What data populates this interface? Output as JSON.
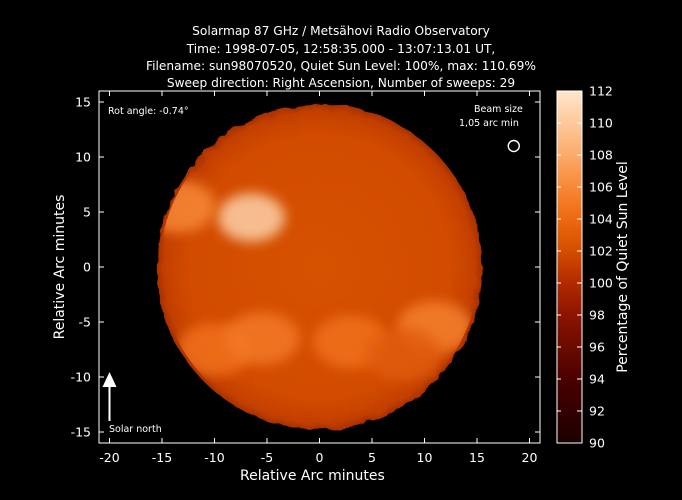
{
  "chart_data": {
    "type": "heatmap",
    "title_lines": [
      "Solarmap 87 GHz / Metsähovi Radio Observatory",
      "Time: 1998-07-05, 12:58:35.000 - 13:07:13.01 UT,",
      "Filename: sun98070520, Quiet Sun Level: 100%, max: 110.69%",
      "Sweep direction: Right Ascension, Number of sweeps: 29"
    ],
    "xlabel": "Relative Arc minutes",
    "ylabel": "Relative Arc minutes",
    "xlim": [
      -21,
      21
    ],
    "ylim": [
      -16,
      16
    ],
    "x_ticks": [
      -20,
      -15,
      -10,
      -5,
      0,
      5,
      10,
      15,
      20
    ],
    "y_ticks": [
      -15,
      -10,
      -5,
      0,
      5,
      10,
      15
    ],
    "colorbar": {
      "label": "Percentage of Quiet Sun Level",
      "range": [
        90,
        112
      ],
      "ticks": [
        90,
        92,
        94,
        96,
        98,
        100,
        102,
        104,
        106,
        108,
        110,
        112
      ]
    },
    "disk": {
      "center": [
        0,
        0
      ],
      "radius_arcmin": 15.5,
      "quiet_level": 100,
      "max_level": 110.69
    },
    "bright_regions": [
      {
        "x": -6.5,
        "y": 4.5,
        "level": 110.5
      },
      {
        "x": -13.5,
        "y": 5.5,
        "level": 106
      },
      {
        "x": -10,
        "y": -7.5,
        "level": 104.5
      },
      {
        "x": -5.5,
        "y": -6.5,
        "level": 105
      },
      {
        "x": 3,
        "y": -6.8,
        "level": 104.5
      },
      {
        "x": 11,
        "y": -5.5,
        "level": 105.5
      },
      {
        "x": 8,
        "y": -8,
        "level": 103
      }
    ],
    "annotations": {
      "rot_angle": "Rot angle: -0.74°",
      "beam_size_line1": "Beam size",
      "beam_size_line2": "1,05 arc min",
      "solar_north": "Solar north"
    },
    "beam_marker": {
      "x": 18.5,
      "y": 11,
      "radius_arcmin": 0.525
    },
    "north_arrow": {
      "x": -20,
      "y_from": -14,
      "y_to": -10
    }
  }
}
